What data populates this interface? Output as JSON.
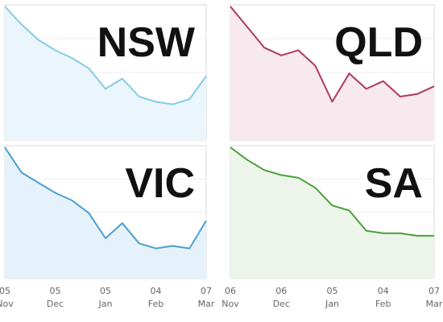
{
  "chart_data": [
    {
      "type": "area",
      "region": "NSW",
      "title": "NSW",
      "colors": {
        "line": "#86cbe6",
        "fill": "#eaf6fb"
      },
      "x": [
        "Nov 05",
        "Nov 15",
        "Nov 25",
        "Dec 05",
        "Dec 15",
        "Dec 25",
        "Jan 05",
        "Jan 15",
        "Jan 25",
        "Feb 04",
        "Feb 14",
        "Feb 24",
        "Mar 07"
      ],
      "values": [
        100,
        86,
        74,
        66,
        60,
        52,
        36,
        44,
        30,
        26,
        24,
        28,
        46
      ],
      "ylim": [
        0,
        100
      ],
      "grid": true,
      "tick_labels": [],
      "tick_sublabels": []
    },
    {
      "type": "area",
      "region": "QLD",
      "title": "QLD",
      "colors": {
        "line": "#b03a5e",
        "fill": "#f7e9ee"
      },
      "x": [
        "Nov 06",
        "Nov 16",
        "Nov 26",
        "Dec 06",
        "Dec 16",
        "Dec 26",
        "Jan 05",
        "Jan 15",
        "Jan 25",
        "Feb 04",
        "Feb 14",
        "Feb 24",
        "Mar 07"
      ],
      "values": [
        100,
        84,
        68,
        62,
        66,
        54,
        26,
        48,
        36,
        42,
        30,
        32,
        38
      ],
      "ylim": [
        0,
        100
      ],
      "grid": true,
      "tick_labels": [],
      "tick_sublabels": []
    },
    {
      "type": "area",
      "region": "VIC",
      "title": "VIC",
      "colors": {
        "line": "#4aa0d0",
        "fill": "#e6f2fb"
      },
      "x": [
        "Nov 05",
        "Nov 15",
        "Nov 25",
        "Dec 05",
        "Dec 15",
        "Dec 25",
        "Jan 05",
        "Jan 15",
        "Jan 25",
        "Feb 04",
        "Feb 14",
        "Feb 24",
        "Mar 07"
      ],
      "values": [
        100,
        80,
        72,
        64,
        58,
        48,
        28,
        40,
        24,
        20,
        22,
        20,
        42
      ],
      "ylim": [
        0,
        100
      ],
      "grid": true,
      "tick_labels": [
        "05",
        "05",
        "05",
        "04",
        "07"
      ],
      "tick_sublabels": [
        "Nov",
        "Dec",
        "Jan",
        "Feb",
        "Mar"
      ]
    },
    {
      "type": "area",
      "region": "SA",
      "title": "SA",
      "colors": {
        "line": "#4aa03a",
        "fill": "#edf4ea"
      },
      "x": [
        "Nov 06",
        "Nov 16",
        "Nov 26",
        "Dec 06",
        "Dec 16",
        "Dec 26",
        "Jan 05",
        "Jan 15",
        "Jan 25",
        "Feb 04",
        "Feb 14",
        "Feb 24",
        "Mar 07"
      ],
      "values": [
        100,
        90,
        82,
        78,
        76,
        68,
        54,
        50,
        34,
        32,
        32,
        30,
        30
      ],
      "ylim": [
        0,
        100
      ],
      "grid": true,
      "tick_labels": [
        "06",
        "06",
        "05",
        "04",
        "07"
      ],
      "tick_sublabels": [
        "Nov",
        "Dec",
        "Jan",
        "Feb",
        "Mar"
      ]
    }
  ]
}
